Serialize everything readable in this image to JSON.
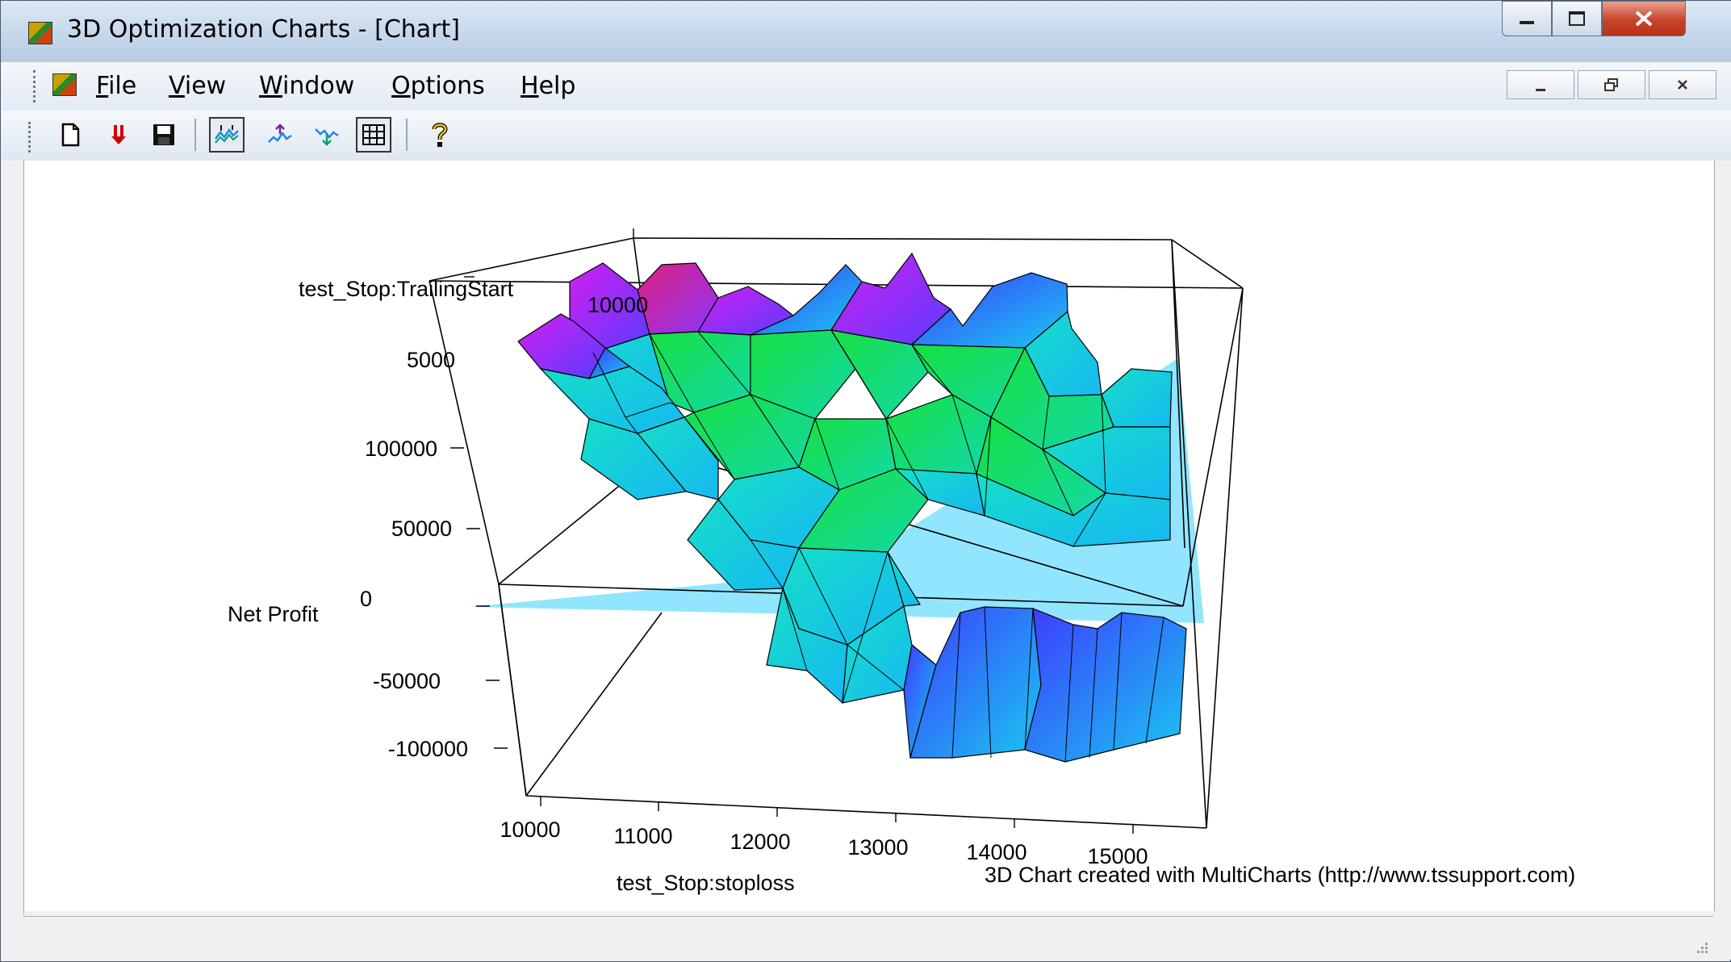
{
  "window": {
    "title": "3D Optimization Charts - [Chart]",
    "controls": {
      "minimize": "minimize",
      "maximize": "maximize",
      "close": "close"
    }
  },
  "menubar": {
    "items": [
      {
        "label": "File",
        "hotkey": "F"
      },
      {
        "label": "View",
        "hotkey": "V"
      },
      {
        "label": "Window",
        "hotkey": "W"
      },
      {
        "label": "Options",
        "hotkey": "O"
      },
      {
        "label": "Help",
        "hotkey": "H"
      }
    ],
    "mdi_controls": [
      "minimize",
      "restore",
      "close"
    ]
  },
  "toolbar": {
    "buttons": [
      {
        "name": "new-document-icon",
        "pressed": false
      },
      {
        "name": "down-arrows-icon",
        "pressed": false
      },
      {
        "name": "save-icon",
        "pressed": false
      },
      {
        "name": "surface-view-icon",
        "pressed": true
      },
      {
        "name": "peaks-view-icon",
        "pressed": false
      },
      {
        "name": "valleys-view-icon",
        "pressed": false
      },
      {
        "name": "grid-icon",
        "pressed": true
      },
      {
        "name": "help-icon",
        "pressed": false
      }
    ]
  },
  "chart_data": {
    "type": "surface3d",
    "z_axis": {
      "label": "Net Profit",
      "ticks": [
        "100000",
        "50000",
        "0",
        "-50000",
        "-100000"
      ]
    },
    "x_axis": {
      "label": "test_Stop:stoploss",
      "ticks": [
        "10000",
        "11000",
        "12000",
        "13000",
        "14000",
        "15000"
      ]
    },
    "y_axis": {
      "label": "test_Stop:TrailingStart",
      "ticks": [
        "5000",
        "10000"
      ]
    },
    "zero_plane": true,
    "credit": "3D Chart created with MultiCharts (http://www.tssupport.com)"
  },
  "colors": {
    "surface_low": "#1e4cff",
    "surface_mid": "#10e060",
    "surface_high": "#d020ff",
    "plane": "#7fe0ff"
  }
}
